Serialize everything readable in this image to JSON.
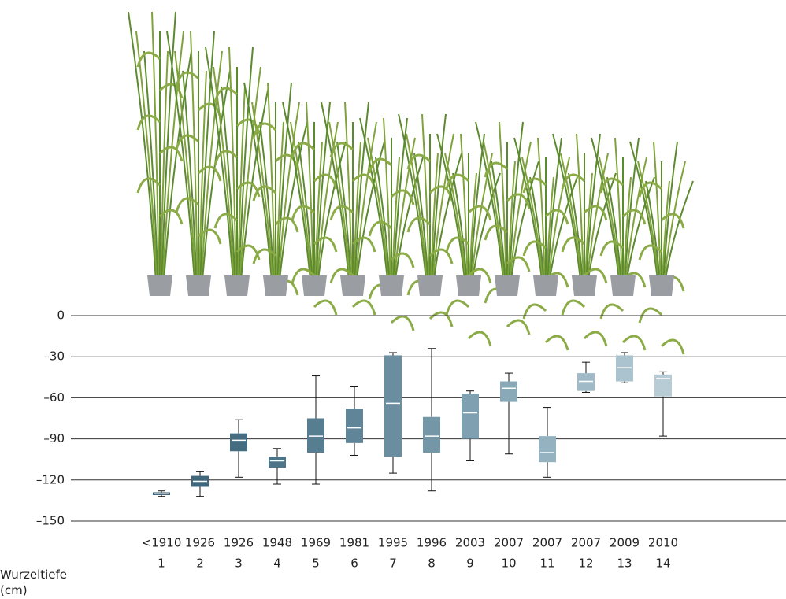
{
  "chart_data": {
    "type": "box",
    "ylabel": "Wurzeltiefe (cm)",
    "categories": [
      "<1910",
      "1926",
      "1926",
      "1948",
      "1969",
      "1981",
      "1995",
      "1996",
      "2003",
      "2007",
      "2007",
      "2007",
      "2009",
      "2010"
    ],
    "category_numbers": [
      "1",
      "2",
      "3",
      "4",
      "5",
      "6",
      "7",
      "8",
      "9",
      "10",
      "11",
      "12",
      "13",
      "14"
    ],
    "max": [
      -128,
      -114,
      -76,
      -97,
      -44,
      -52,
      -27,
      -24,
      -55,
      -42,
      -67,
      -34,
      -27,
      -41
    ],
    "q3": [
      -129,
      -117,
      -86,
      -103,
      -75,
      -68,
      -29,
      -74,
      -57,
      -48,
      -88,
      -42,
      -29,
      -43
    ],
    "median": [
      -130,
      -121,
      -91,
      -106,
      -88,
      -82,
      -64,
      -88,
      -71,
      -53,
      -100,
      -48,
      -38,
      -46
    ],
    "q1": [
      -131,
      -125,
      -99,
      -111,
      -100,
      -93,
      -103,
      -100,
      -90,
      -63,
      -107,
      -55,
      -48,
      -59
    ],
    "min": [
      -132,
      -132,
      -118,
      -123,
      -123,
      -102,
      -115,
      -128,
      -106,
      -101,
      -118,
      -56,
      -49,
      -88
    ],
    "colors": [
      "#3b6276",
      "#40687c",
      "#456d81",
      "#4d7487",
      "#577d90",
      "#608598",
      "#6a8ea0",
      "#7497a8",
      "#7fa0b0",
      "#8aa9b8",
      "#95b2c0",
      "#a0bbc7",
      "#abc3ce",
      "#b8ccd6"
    ],
    "ylim": [
      -150,
      0
    ],
    "yticks": [
      {
        "value": 0,
        "label": "0"
      },
      {
        "value": -30,
        "label": "–30"
      },
      {
        "value": -60,
        "label": "–60"
      },
      {
        "value": -90,
        "label": "–90"
      },
      {
        "value": -120,
        "label": "–120"
      },
      {
        "value": -150,
        "label": "–150"
      }
    ],
    "grid": true
  }
}
